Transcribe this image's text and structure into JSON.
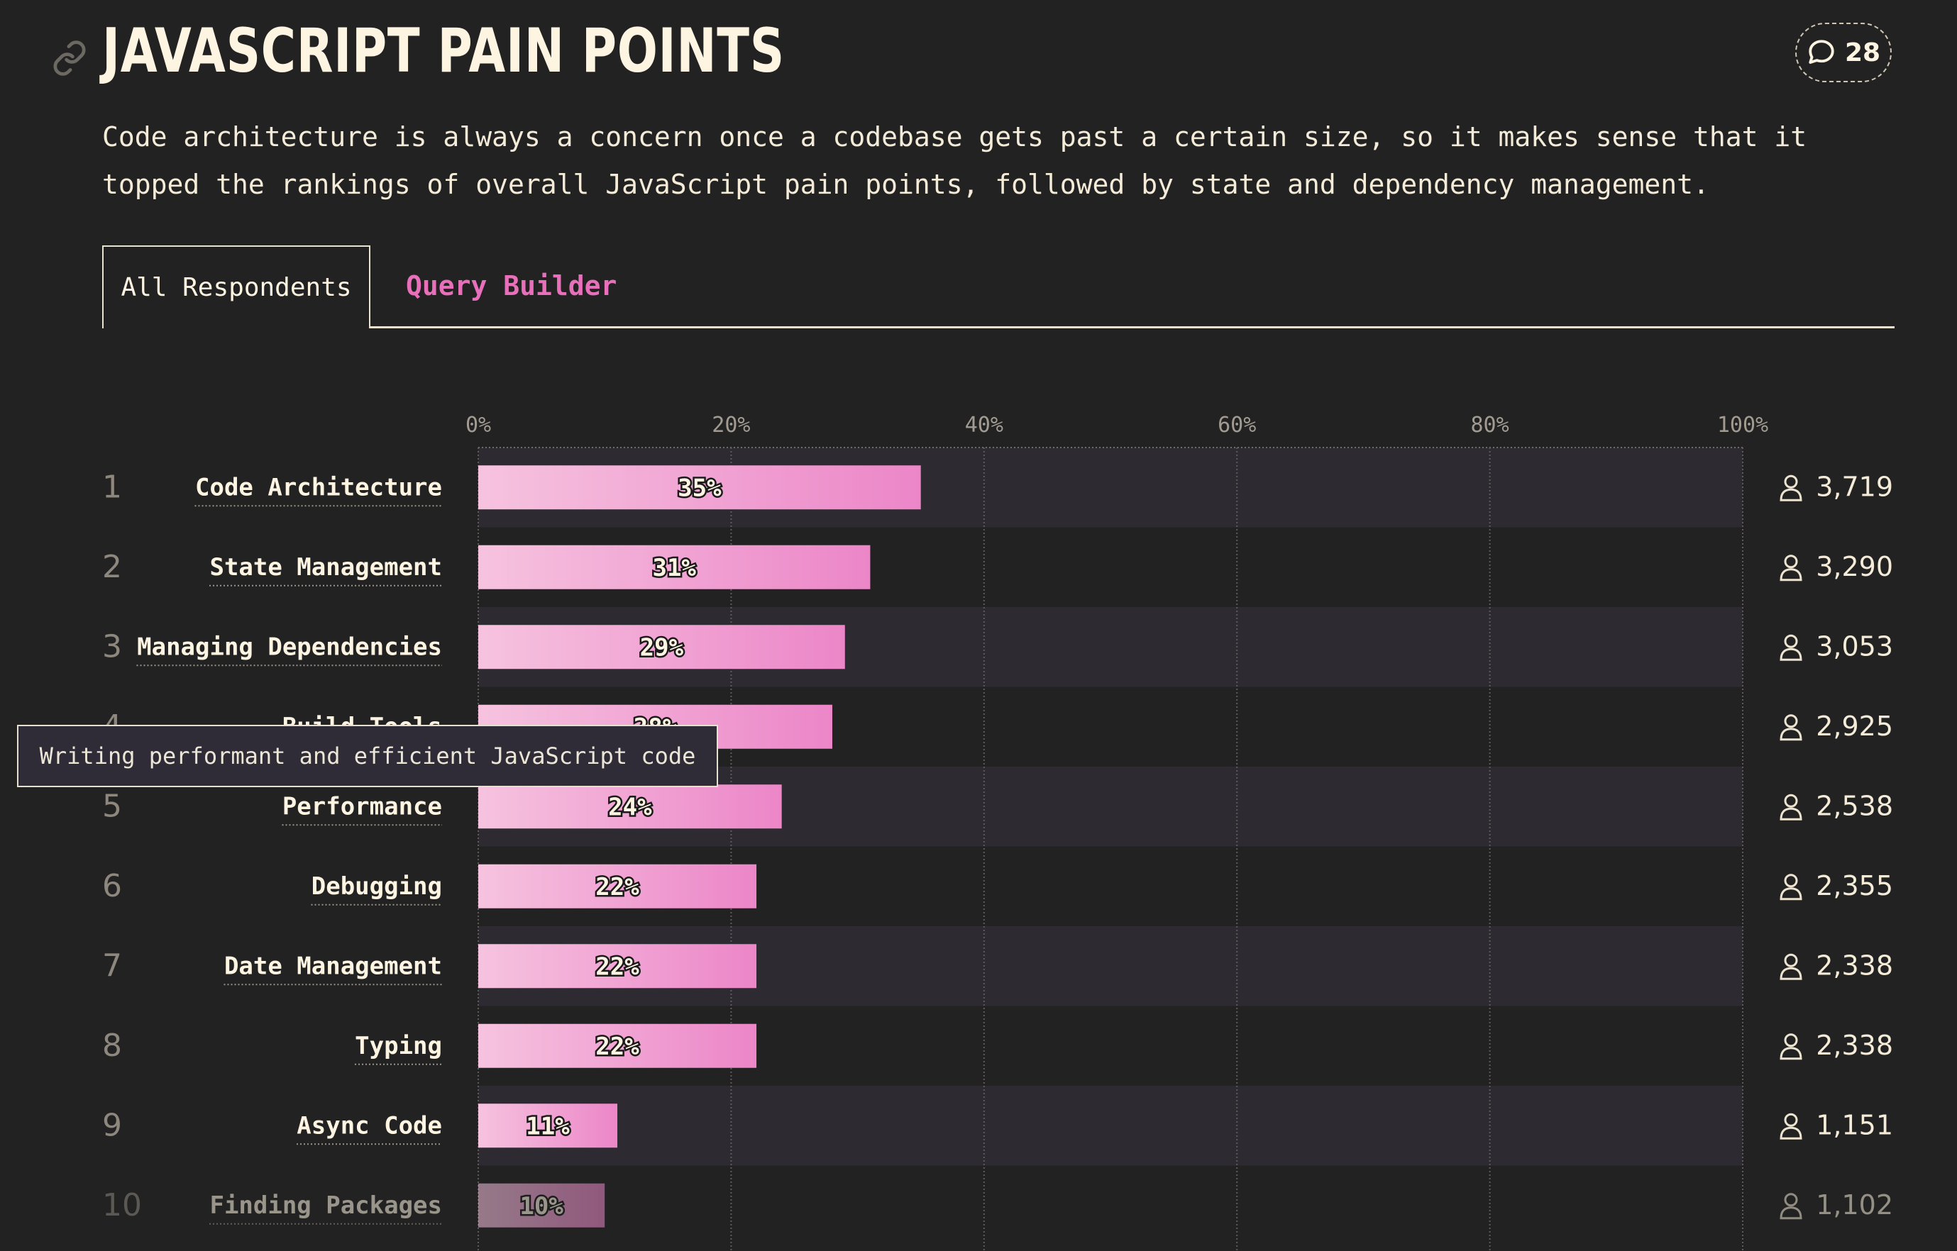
{
  "header": {
    "title": "JAVASCRIPT PAIN POINTS",
    "comment_count": "28",
    "intro": "Code architecture is always a concern once a codebase gets past a certain size, so it makes sense that it topped the rankings of overall JavaScript pain points, followed by state and dependency management."
  },
  "tabs": [
    {
      "label": "All Respondents",
      "active": true
    },
    {
      "label": "Query Builder",
      "active": false
    }
  ],
  "tooltip": {
    "text": "Writing performant and efficient JavaScript code"
  },
  "colors": {
    "background": "#232222",
    "row_band": "#2d2b31",
    "bar_start": "#f6c3df",
    "bar_end": "#ec86c8",
    "accent": "#e870ba",
    "text": "#f4ecd8"
  },
  "icons": {
    "link": "link-icon",
    "comment": "comment-icon",
    "respondents": "user-icon"
  },
  "chart_data": {
    "type": "bar",
    "orientation": "horizontal",
    "xlim": [
      0,
      100
    ],
    "x_ticks": [
      "0%",
      "20%",
      "40%",
      "60%",
      "80%",
      "100%"
    ],
    "grid": true,
    "categories": [
      "Code Architecture",
      "State Management",
      "Managing Dependencies",
      "Build Tools",
      "Performance",
      "Debugging",
      "Date Management",
      "Typing",
      "Async Code",
      "Finding Packages"
    ],
    "ranks": [
      "1",
      "2",
      "3",
      "4",
      "5",
      "6",
      "7",
      "8",
      "9",
      "10"
    ],
    "values": [
      35,
      31,
      29,
      28,
      24,
      22,
      22,
      22,
      11,
      10
    ],
    "value_labels": [
      "35%",
      "31%",
      "29%",
      "28%",
      "24%",
      "22%",
      "22%",
      "22%",
      "11%",
      "10%"
    ],
    "counts": [
      "3,719",
      "3,290",
      "3,053",
      "2,925",
      "2,538",
      "2,355",
      "2,338",
      "2,338",
      "1,151",
      "1,102"
    ],
    "dimmed_rows": [
      9
    ]
  }
}
